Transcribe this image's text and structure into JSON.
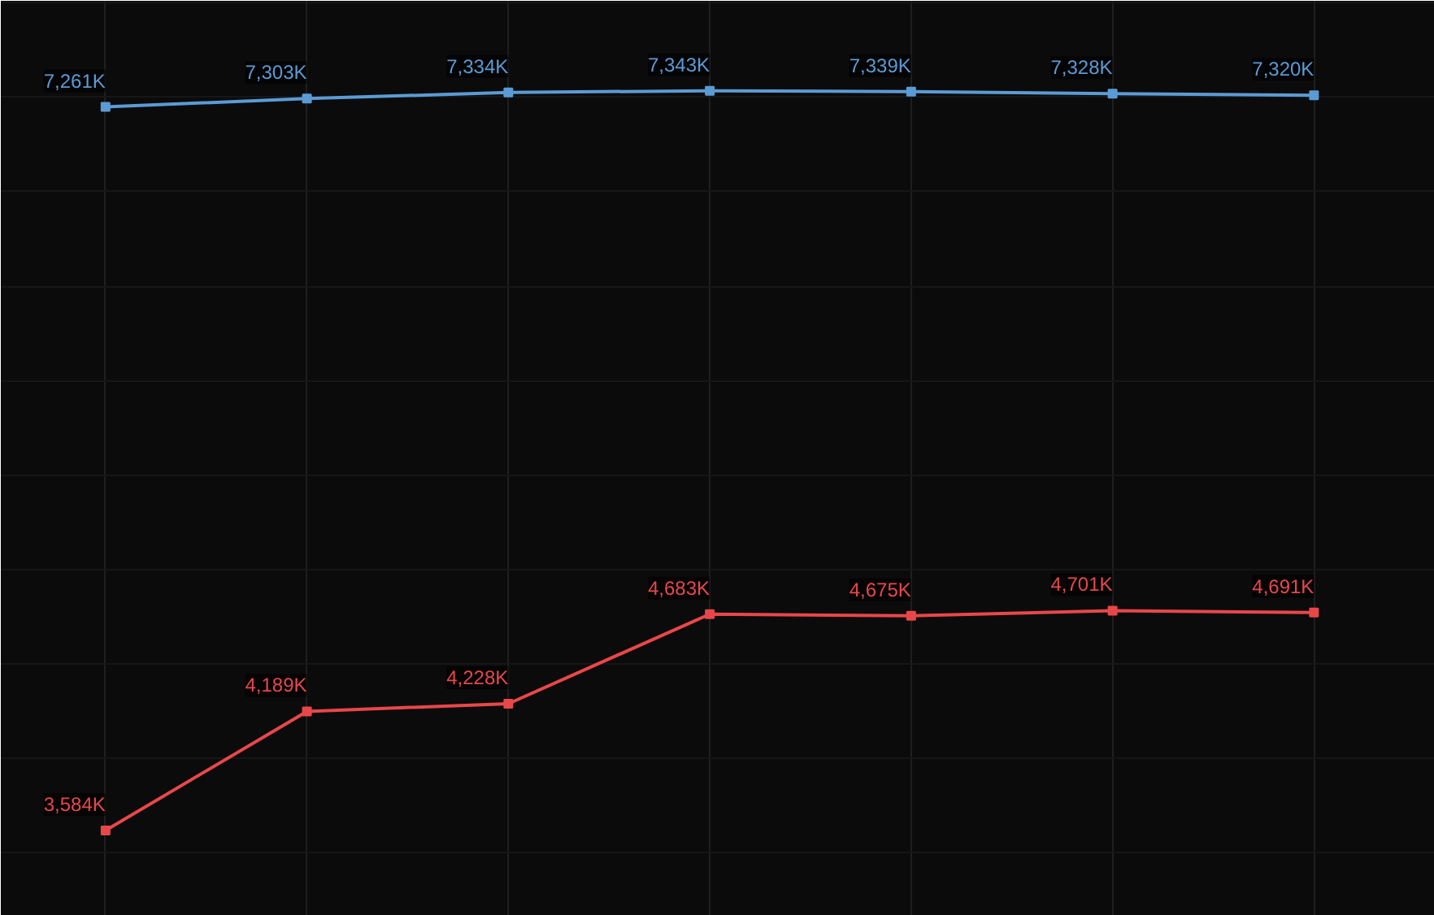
{
  "chart_data": {
    "type": "line",
    "categories": [
      null,
      null,
      null,
      null,
      null,
      null,
      null
    ],
    "series": [
      {
        "color": "#5b9bd5",
        "values": [
          7261,
          7303,
          7334,
          7343,
          7339,
          7328,
          7320
        ],
        "value_labels": [
          "7,261K",
          "7,303K",
          "7,334K",
          "7,343K",
          "7,339K",
          "7,328K",
          "7,320K"
        ]
      },
      {
        "color": "#e8474a",
        "values": [
          3584,
          4189,
          4228,
          4683,
          4675,
          4701,
          4691
        ],
        "value_labels": [
          "3,584K",
          "4,189K",
          "4,228K",
          "4,683K",
          "4,675K",
          "4,701K",
          "4,691K"
        ]
      }
    ],
    "ylim": [
      3150,
      7800
    ],
    "yticks": [
      {
        "value": 3470,
        "label": null
      },
      {
        "value": 3950,
        "label": null
      },
      {
        "value": 4430,
        "label": null
      },
      {
        "value": 4910,
        "label": null
      },
      {
        "value": 5390,
        "label": null
      },
      {
        "value": 5870,
        "label": null
      },
      {
        "value": 6350,
        "label": null
      },
      {
        "value": 6830,
        "label": null
      },
      {
        "value": 7310,
        "label": null
      },
      {
        "value": 7790,
        "label": null
      }
    ],
    "grid": true,
    "tick_labels": false,
    "marker": "square",
    "line_style": "solid"
  }
}
